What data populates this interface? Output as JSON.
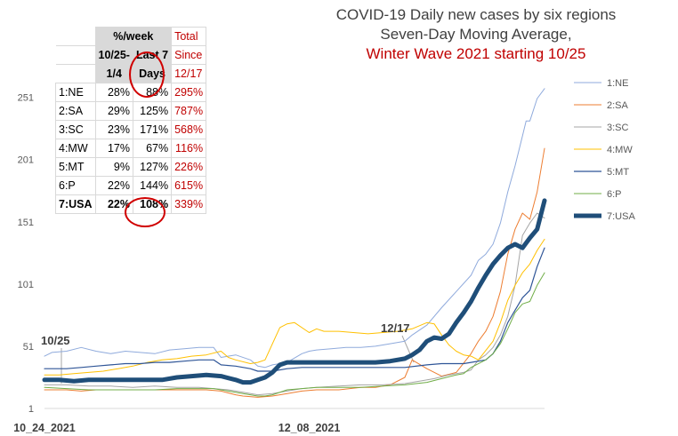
{
  "chart_data": {
    "type": "line",
    "title_lines": [
      "COVID-19 Daily new cases by six regions",
      "Seven-Day Moving Average,",
      "Winter Wave 2021 starting 10/25"
    ],
    "x_ticks": [
      "10_24_2021",
      "12_08_2021"
    ],
    "y_ticks": [
      1,
      51,
      101,
      151,
      201,
      251
    ],
    "ylim": [
      1,
      265
    ],
    "legend_position": "right",
    "annotations": [
      {
        "label": "10/25",
        "date": "10/25"
      },
      {
        "label": "12/17",
        "date": "12/17"
      }
    ],
    "series": [
      {
        "name": "1:NE",
        "color": "#8faadc",
        "width": 1,
        "points": [
          [
            0,
            43
          ],
          [
            2,
            46
          ],
          [
            6,
            47
          ],
          [
            10,
            50
          ],
          [
            14,
            47
          ],
          [
            18,
            45
          ],
          [
            22,
            47
          ],
          [
            26,
            46
          ],
          [
            30,
            45
          ],
          [
            34,
            48
          ],
          [
            38,
            49
          ],
          [
            42,
            50
          ],
          [
            46,
            50
          ],
          [
            48,
            42
          ],
          [
            52,
            44
          ],
          [
            56,
            40
          ],
          [
            58,
            35
          ],
          [
            60,
            34
          ],
          [
            62,
            36
          ],
          [
            66,
            38
          ],
          [
            70,
            45
          ],
          [
            72,
            47
          ],
          [
            74,
            48
          ],
          [
            78,
            49
          ],
          [
            82,
            50
          ],
          [
            86,
            50
          ],
          [
            90,
            51
          ],
          [
            94,
            53
          ],
          [
            98,
            55
          ],
          [
            100,
            60
          ],
          [
            104,
            68
          ],
          [
            108,
            82
          ],
          [
            112,
            95
          ],
          [
            116,
            108
          ],
          [
            118,
            120
          ],
          [
            120,
            125
          ],
          [
            122,
            133
          ],
          [
            124,
            150
          ],
          [
            126,
            175
          ],
          [
            128,
            196
          ],
          [
            130,
            220
          ],
          [
            131,
            232
          ],
          [
            132,
            232
          ],
          [
            134,
            250
          ],
          [
            136,
            258
          ]
        ]
      },
      {
        "name": "2:SA",
        "color": "#ed7d31",
        "width": 1,
        "points": [
          [
            0,
            16
          ],
          [
            6,
            16
          ],
          [
            10,
            15
          ],
          [
            14,
            16
          ],
          [
            20,
            16
          ],
          [
            26,
            16
          ],
          [
            32,
            16
          ],
          [
            38,
            16
          ],
          [
            44,
            16
          ],
          [
            48,
            15
          ],
          [
            52,
            12
          ],
          [
            54,
            11
          ],
          [
            58,
            10
          ],
          [
            62,
            11
          ],
          [
            66,
            13
          ],
          [
            70,
            15
          ],
          [
            74,
            16
          ],
          [
            80,
            16
          ],
          [
            86,
            18
          ],
          [
            90,
            18
          ],
          [
            94,
            20
          ],
          [
            98,
            26
          ],
          [
            100,
            40
          ],
          [
            104,
            33
          ],
          [
            108,
            27
          ],
          [
            112,
            30
          ],
          [
            116,
            45
          ],
          [
            118,
            55
          ],
          [
            120,
            63
          ],
          [
            122,
            75
          ],
          [
            124,
            95
          ],
          [
            126,
            125
          ],
          [
            128,
            145
          ],
          [
            130,
            158
          ],
          [
            132,
            153
          ],
          [
            134,
            175
          ],
          [
            136,
            210
          ]
        ]
      },
      {
        "name": "3:SC",
        "color": "#a5a5a5",
        "width": 1,
        "points": [
          [
            0,
            20
          ],
          [
            6,
            20
          ],
          [
            12,
            19
          ],
          [
            18,
            19
          ],
          [
            24,
            18
          ],
          [
            30,
            19
          ],
          [
            36,
            18
          ],
          [
            42,
            18
          ],
          [
            46,
            17
          ],
          [
            50,
            16
          ],
          [
            54,
            14
          ],
          [
            58,
            12
          ],
          [
            62,
            13
          ],
          [
            66,
            15
          ],
          [
            70,
            17
          ],
          [
            74,
            18
          ],
          [
            80,
            19
          ],
          [
            86,
            20
          ],
          [
            92,
            20
          ],
          [
            98,
            21
          ],
          [
            102,
            23
          ],
          [
            106,
            25
          ],
          [
            110,
            28
          ],
          [
            114,
            30
          ],
          [
            116,
            32
          ],
          [
            118,
            40
          ],
          [
            120,
            44
          ],
          [
            122,
            50
          ],
          [
            124,
            60
          ],
          [
            126,
            75
          ],
          [
            128,
            100
          ],
          [
            130,
            140
          ],
          [
            132,
            150
          ],
          [
            134,
            158
          ],
          [
            136,
            154
          ]
        ]
      },
      {
        "name": "4:MW",
        "color": "#ffc000",
        "width": 1,
        "points": [
          [
            0,
            28
          ],
          [
            4,
            28
          ],
          [
            8,
            29
          ],
          [
            12,
            30
          ],
          [
            16,
            31
          ],
          [
            20,
            33
          ],
          [
            24,
            35
          ],
          [
            28,
            38
          ],
          [
            32,
            40
          ],
          [
            36,
            41
          ],
          [
            40,
            43
          ],
          [
            44,
            44
          ],
          [
            48,
            47
          ],
          [
            50,
            42
          ],
          [
            52,
            40
          ],
          [
            56,
            37
          ],
          [
            58,
            38
          ],
          [
            60,
            40
          ],
          [
            64,
            66
          ],
          [
            66,
            69
          ],
          [
            68,
            70
          ],
          [
            72,
            62
          ],
          [
            74,
            65
          ],
          [
            76,
            63
          ],
          [
            80,
            63
          ],
          [
            84,
            62
          ],
          [
            88,
            61
          ],
          [
            92,
            62
          ],
          [
            96,
            63
          ],
          [
            100,
            65
          ],
          [
            104,
            70
          ],
          [
            106,
            69
          ],
          [
            108,
            60
          ],
          [
            110,
            52
          ],
          [
            112,
            47
          ],
          [
            114,
            44
          ],
          [
            116,
            43
          ],
          [
            118,
            40
          ],
          [
            122,
            55
          ],
          [
            124,
            70
          ],
          [
            126,
            88
          ],
          [
            128,
            100
          ],
          [
            130,
            110
          ],
          [
            132,
            117
          ],
          [
            134,
            128
          ],
          [
            136,
            137
          ]
        ]
      },
      {
        "name": "5:MT",
        "color": "#2f5597",
        "width": 1.2,
        "points": [
          [
            0,
            33
          ],
          [
            6,
            33
          ],
          [
            10,
            34
          ],
          [
            14,
            35
          ],
          [
            18,
            36
          ],
          [
            22,
            37
          ],
          [
            26,
            37
          ],
          [
            30,
            38
          ],
          [
            34,
            38
          ],
          [
            38,
            39
          ],
          [
            42,
            40
          ],
          [
            46,
            40
          ],
          [
            48,
            36
          ],
          [
            52,
            35
          ],
          [
            56,
            33
          ],
          [
            58,
            31
          ],
          [
            62,
            31
          ],
          [
            66,
            33
          ],
          [
            70,
            34
          ],
          [
            74,
            34
          ],
          [
            80,
            34
          ],
          [
            86,
            34
          ],
          [
            92,
            34
          ],
          [
            98,
            34
          ],
          [
            104,
            36
          ],
          [
            108,
            37
          ],
          [
            110,
            37
          ],
          [
            114,
            37
          ],
          [
            116,
            38
          ],
          [
            120,
            40
          ],
          [
            122,
            45
          ],
          [
            124,
            55
          ],
          [
            126,
            70
          ],
          [
            128,
            80
          ],
          [
            130,
            90
          ],
          [
            132,
            96
          ],
          [
            134,
            115
          ],
          [
            136,
            130
          ]
        ]
      },
      {
        "name": "6:P",
        "color": "#70ad47",
        "width": 1,
        "points": [
          [
            0,
            18
          ],
          [
            6,
            17
          ],
          [
            12,
            16
          ],
          [
            18,
            16
          ],
          [
            24,
            16
          ],
          [
            30,
            16
          ],
          [
            36,
            17
          ],
          [
            42,
            17
          ],
          [
            46,
            17
          ],
          [
            50,
            15
          ],
          [
            54,
            13
          ],
          [
            58,
            11
          ],
          [
            60,
            11
          ],
          [
            62,
            12
          ],
          [
            66,
            16
          ],
          [
            70,
            17
          ],
          [
            74,
            18
          ],
          [
            80,
            18
          ],
          [
            86,
            18
          ],
          [
            92,
            19
          ],
          [
            98,
            20
          ],
          [
            104,
            22
          ],
          [
            108,
            25
          ],
          [
            112,
            28
          ],
          [
            114,
            29
          ],
          [
            116,
            34
          ],
          [
            120,
            40
          ],
          [
            122,
            45
          ],
          [
            124,
            53
          ],
          [
            126,
            65
          ],
          [
            128,
            78
          ],
          [
            130,
            85
          ],
          [
            132,
            87
          ],
          [
            134,
            100
          ],
          [
            136,
            110
          ]
        ]
      },
      {
        "name": "7:USA",
        "color": "#1f4e79",
        "width": 5,
        "points": [
          [
            0,
            24
          ],
          [
            4,
            24
          ],
          [
            8,
            23
          ],
          [
            12,
            24
          ],
          [
            16,
            24
          ],
          [
            20,
            24
          ],
          [
            24,
            24
          ],
          [
            28,
            24
          ],
          [
            32,
            24
          ],
          [
            36,
            26
          ],
          [
            40,
            27
          ],
          [
            44,
            28
          ],
          [
            48,
            27
          ],
          [
            52,
            24
          ],
          [
            54,
            22
          ],
          [
            56,
            22
          ],
          [
            58,
            24
          ],
          [
            60,
            26
          ],
          [
            62,
            30
          ],
          [
            64,
            36
          ],
          [
            66,
            38
          ],
          [
            70,
            38
          ],
          [
            74,
            38
          ],
          [
            78,
            38
          ],
          [
            82,
            38
          ],
          [
            86,
            38
          ],
          [
            90,
            38
          ],
          [
            94,
            39
          ],
          [
            98,
            41
          ],
          [
            100,
            44
          ],
          [
            102,
            48
          ],
          [
            104,
            55
          ],
          [
            106,
            58
          ],
          [
            108,
            57
          ],
          [
            110,
            61
          ],
          [
            112,
            70
          ],
          [
            114,
            78
          ],
          [
            116,
            87
          ],
          [
            118,
            98
          ],
          [
            120,
            108
          ],
          [
            122,
            117
          ],
          [
            124,
            124
          ],
          [
            126,
            130
          ],
          [
            128,
            133
          ],
          [
            130,
            130
          ],
          [
            132,
            138
          ],
          [
            134,
            145
          ],
          [
            136,
            168
          ]
        ]
      }
    ],
    "table": {
      "header_top": "%/week",
      "header_total": "Total",
      "header_since": "Since",
      "header_date": "12/17",
      "col1_header": "10/25-",
      "col1_header_b": "1/4",
      "col2_header": "Last 7",
      "col2_header_b": "Days",
      "rows": [
        {
          "region": "1:NE",
          "a": "28%",
          "b": "88%",
          "c": "295%"
        },
        {
          "region": "2:SA",
          "a": "29%",
          "b": "125%",
          "c": "787%"
        },
        {
          "region": "3:SC",
          "a": "23%",
          "b": "171%",
          "c": "568%"
        },
        {
          "region": "4:MW",
          "a": "17%",
          "b": "67%",
          "c": "116%"
        },
        {
          "region": "5:MT",
          "a": "9%",
          "b": "127%",
          "c": "226%"
        },
        {
          "region": "6:P",
          "a": "22%",
          "b": "144%",
          "c": "615%"
        },
        {
          "region": "7:USA",
          "a": "22%",
          "b": "108%",
          "c": "339%"
        }
      ]
    }
  }
}
